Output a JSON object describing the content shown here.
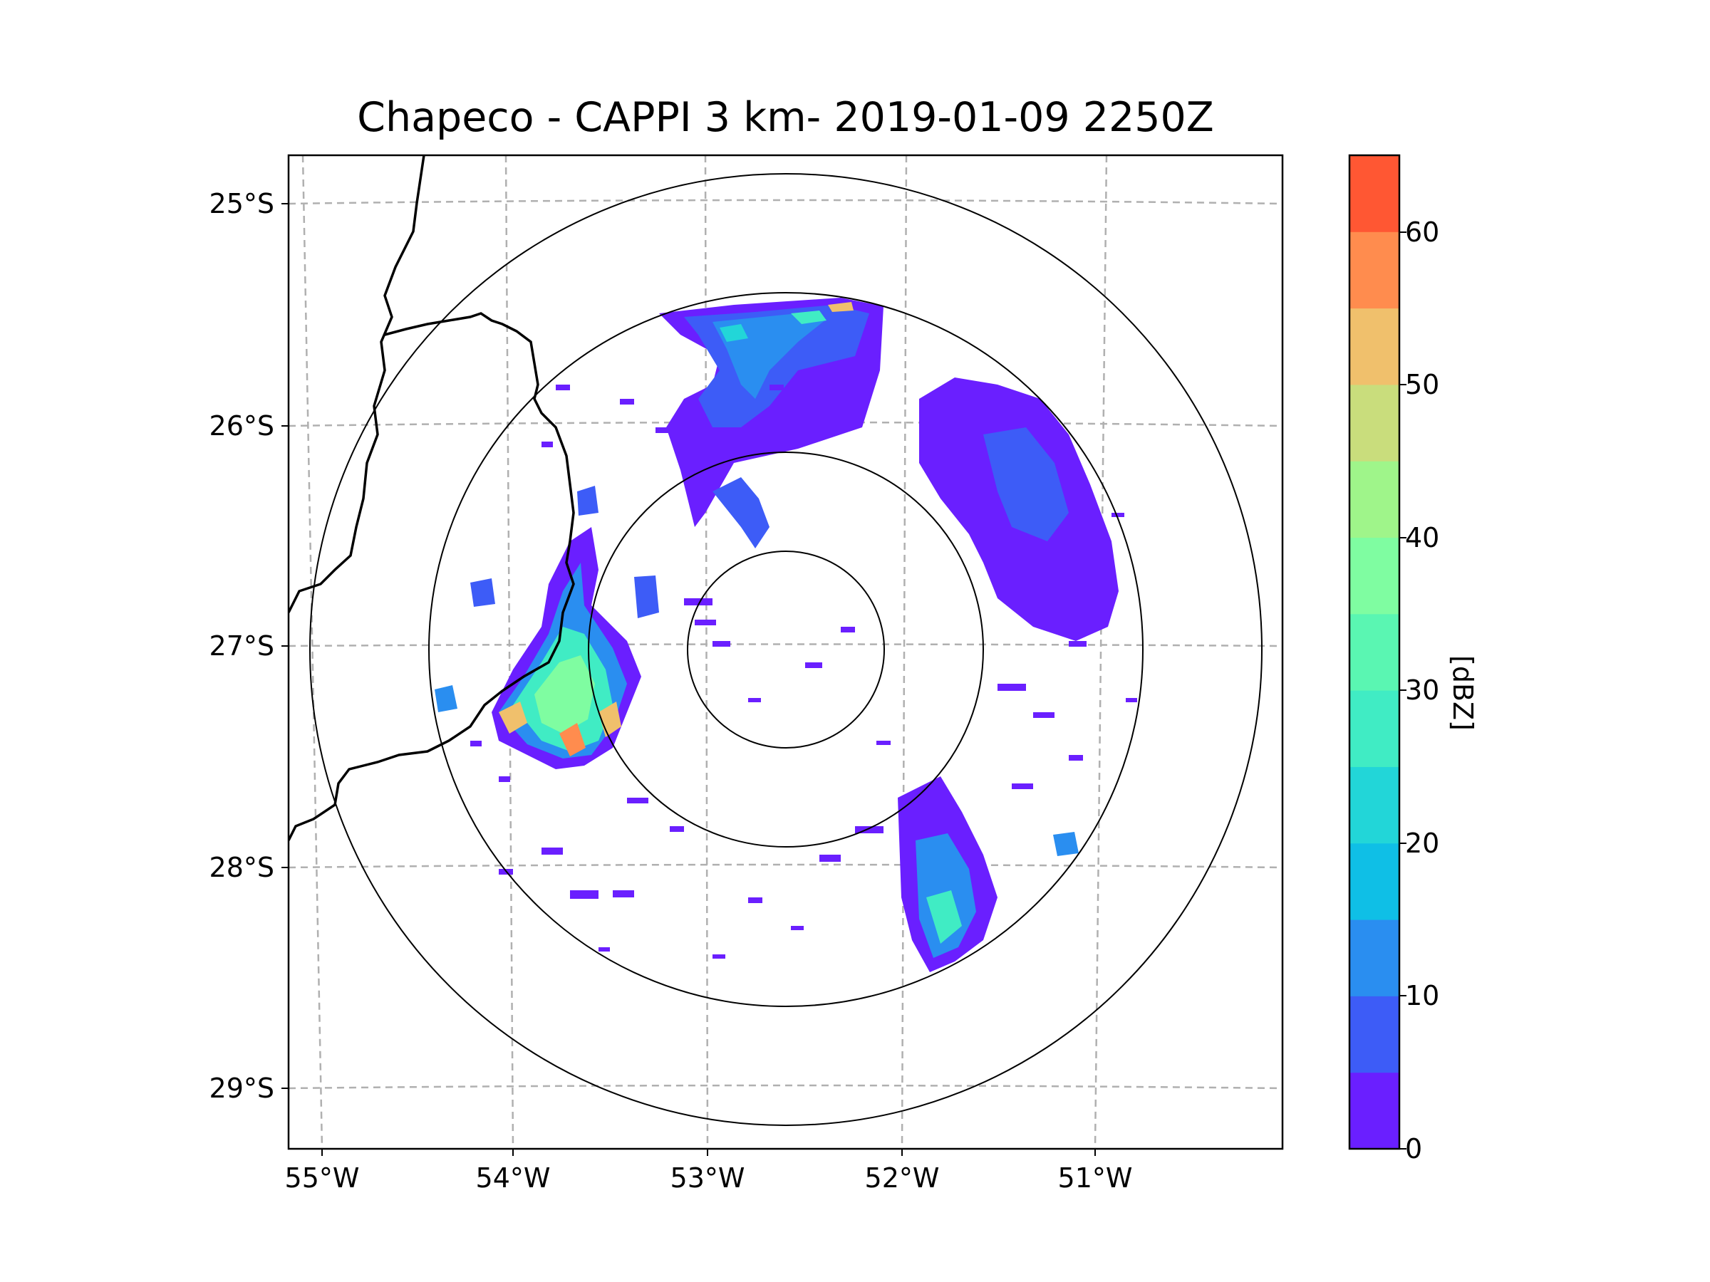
{
  "title": "Chapeco - CAPPI 3 km- 2019-01-09 2250Z",
  "colorbar": {
    "label": "[dBZ]",
    "ticks": [
      "0",
      "10",
      "20",
      "30",
      "40",
      "50",
      "60"
    ],
    "levels": [
      0,
      5,
      10,
      15,
      20,
      25,
      30,
      35,
      40,
      45,
      50,
      55,
      60,
      65
    ],
    "colors": [
      "#6a1fff",
      "#3d5cf7",
      "#2a8ef0",
      "#0fbfe6",
      "#22d6d8",
      "#40ecc4",
      "#5af6b2",
      "#7ffda1",
      "#9ff58a",
      "#c9dd7c",
      "#f0c06c",
      "#ff8c4e",
      "#ff5733",
      "#ff2318"
    ]
  },
  "lat_labels": [
    "25°S",
    "26°S",
    "27°S",
    "28°S",
    "29°S"
  ],
  "lon_labels": [
    "55°W",
    "54°W",
    "53°W",
    "52°W",
    "51°W"
  ],
  "radar": {
    "site": "Chapeco",
    "range_rings": 4
  }
}
